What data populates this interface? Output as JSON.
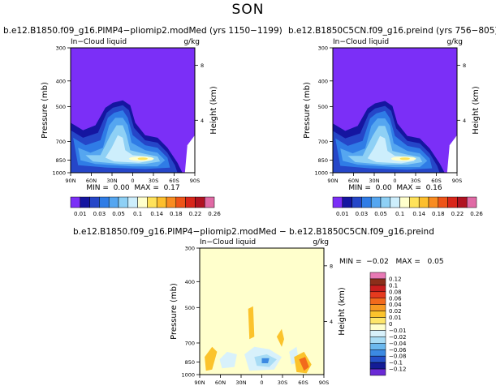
{
  "figure": {
    "season": "SON",
    "colors": {
      "background": "#ffffff",
      "field_high": "#ffffcc",
      "neutral": "#ffffcc"
    }
  },
  "chart_data": [
    {
      "type": "heatmap",
      "id": "panel_left",
      "title": "b.e12.B1850.f09_g16.PIMP4−pliomip2.modMed (yrs 1150−1199)",
      "subtitle_left": "In−Cloud liquid",
      "subtitle_right": "g/kg",
      "ylabel": "Pressure (mb)",
      "ylabel_right": "Height (km)",
      "x_ticks": [
        "90N",
        "60N",
        "30N",
        "0",
        "30S",
        "60S",
        "90S"
      ],
      "y_ticks": [
        "300",
        "400",
        "500",
        "700",
        "850",
        "1000"
      ],
      "y_right_ticks": [
        "8",
        "4"
      ],
      "min_max_text": "MIN =  0.00  MAX =  0.17",
      "min": 0.0,
      "max": 0.17,
      "grid": false
    },
    {
      "type": "heatmap",
      "id": "panel_right",
      "title": "b.e12.B1850C5CN.f09_g16.preind (yrs 756−805)",
      "subtitle_left": "In−Cloud liquid",
      "subtitle_right": "g/kg",
      "ylabel": "Pressure (mb)",
      "ylabel_right": "Height (km)",
      "x_ticks": [
        "90N",
        "60N",
        "30N",
        "0",
        "30S",
        "60S",
        "90S"
      ],
      "y_ticks": [
        "300",
        "400",
        "500",
        "700",
        "850",
        "1000"
      ],
      "y_right_ticks": [
        "8",
        "4"
      ],
      "min_max_text": "MIN =  0.00  MAX =  0.16",
      "min": 0.0,
      "max": 0.16,
      "grid": false
    },
    {
      "type": "heatmap",
      "id": "panel_diff",
      "title": "b.e12.B1850.f09_g16.PIMP4−pliomip2.modMed − b.e12.B1850C5CN.f09_g16.preind",
      "subtitle_left": "In−Cloud liquid",
      "subtitle_right": "g/kg",
      "ylabel": "Pressure (mb)",
      "ylabel_right": "Height (km)",
      "x_ticks": [
        "90N",
        "60N",
        "30N",
        "0",
        "30S",
        "60S",
        "90S"
      ],
      "y_ticks": [
        "300",
        "400",
        "500",
        "700",
        "850",
        "1000"
      ],
      "y_right_ticks": [
        "8",
        "4"
      ],
      "min_max_text": "MIN =  −0.02   MAX =   0.05",
      "min": -0.02,
      "max": 0.05,
      "grid": false
    }
  ],
  "colorbar_abs": {
    "labels": [
      "0.01",
      "0.03",
      "0.05",
      "0.1",
      "0.14",
      "0.18",
      "0.22",
      "0.26"
    ],
    "colors": [
      "#7b2ff7",
      "#1515a0",
      "#2546c8",
      "#2f7ce6",
      "#55a6f0",
      "#8ed0f5",
      "#cdeefc",
      "#ffffcc",
      "#ffe25a",
      "#fdbf2d",
      "#f98c21",
      "#ee5418",
      "#d8261a",
      "#b01221",
      "#e06aa5"
    ]
  },
  "colorbar_diff": {
    "labels": [
      "0.12",
      "0.1",
      "0.08",
      "0.06",
      "0.04",
      "0.02",
      "0.01",
      "0",
      "−0.01",
      "−0.02",
      "−0.04",
      "−0.06",
      "−0.08",
      "−0.1",
      "−0.12"
    ],
    "colors": [
      "#e879b5",
      "#8b2e1a",
      "#c81e1e",
      "#e63a1e",
      "#f26a1c",
      "#f79a22",
      "#fbc32c",
      "#fde66a",
      "#ffffcc",
      "#d8f1fb",
      "#a8dcf5",
      "#6bb8ee",
      "#3c8ae2",
      "#2550c8",
      "#141c96",
      "#6a2ad6"
    ]
  }
}
